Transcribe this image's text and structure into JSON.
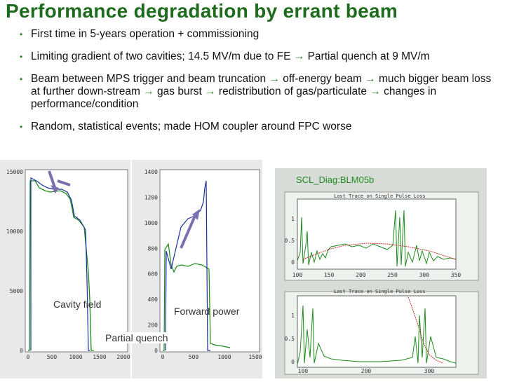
{
  "slide": {
    "title": "Performance degradation by errant beam",
    "bullets": [
      {
        "parts": [
          "First time in 5-years operation + commissioning"
        ]
      },
      {
        "parts": [
          "Limiting gradient  of two cavities; 14.5 MV/m due to FE ",
          " Partial quench at 9 MV/m"
        ]
      },
      {
        "parts": [
          "Beam between MPS trigger and beam truncation ",
          " off-energy beam ",
          " much bigger beam loss at further down-stream ",
          " gas burst ",
          " redistribution of gas/particulate ",
          " changes in performance/condition"
        ]
      },
      {
        "parts": [
          "Random, statistical events; made HOM coupler around FPC worse"
        ]
      }
    ],
    "arrow_glyph": "→"
  },
  "plots": {
    "cavity_field": {
      "label": "Cavity field",
      "y_ticks": [
        "15000",
        "10000",
        "5000",
        "0"
      ],
      "x_ticks": [
        "0",
        "500",
        "1000",
        "1500",
        "2000"
      ]
    },
    "forward_power": {
      "label": "Forward power",
      "y_ticks": [
        "1400",
        "1200",
        "1000",
        "800",
        "600",
        "400",
        "200",
        "0"
      ],
      "x_ticks": [
        "0",
        "500",
        "1000",
        "1500"
      ]
    },
    "partial_quench_label": "Partial quench",
    "blm": {
      "title": "SCL_Diag:BLM05b",
      "top": {
        "caption": "Last Trace on Single Pulse Loss",
        "y_ticks": [
          "1",
          "0.5",
          "0"
        ],
        "x_ticks": [
          "100",
          "150",
          "200",
          "250",
          "300",
          "350"
        ]
      },
      "bottom": {
        "caption": "Last Trace on Single Pulse Loss",
        "y_ticks": [
          "1",
          "0.5",
          "0"
        ],
        "x_ticks": [
          "100",
          "200",
          "300"
        ]
      }
    }
  },
  "colors": {
    "title": "#1e6b1e",
    "bullet_arrow": "#2e7d2e",
    "trace_green": "#1a8a1a",
    "trace_blue": "#1c2f9c",
    "trace_red": "#c0392b",
    "annot_purple": "#7b6fb0"
  }
}
